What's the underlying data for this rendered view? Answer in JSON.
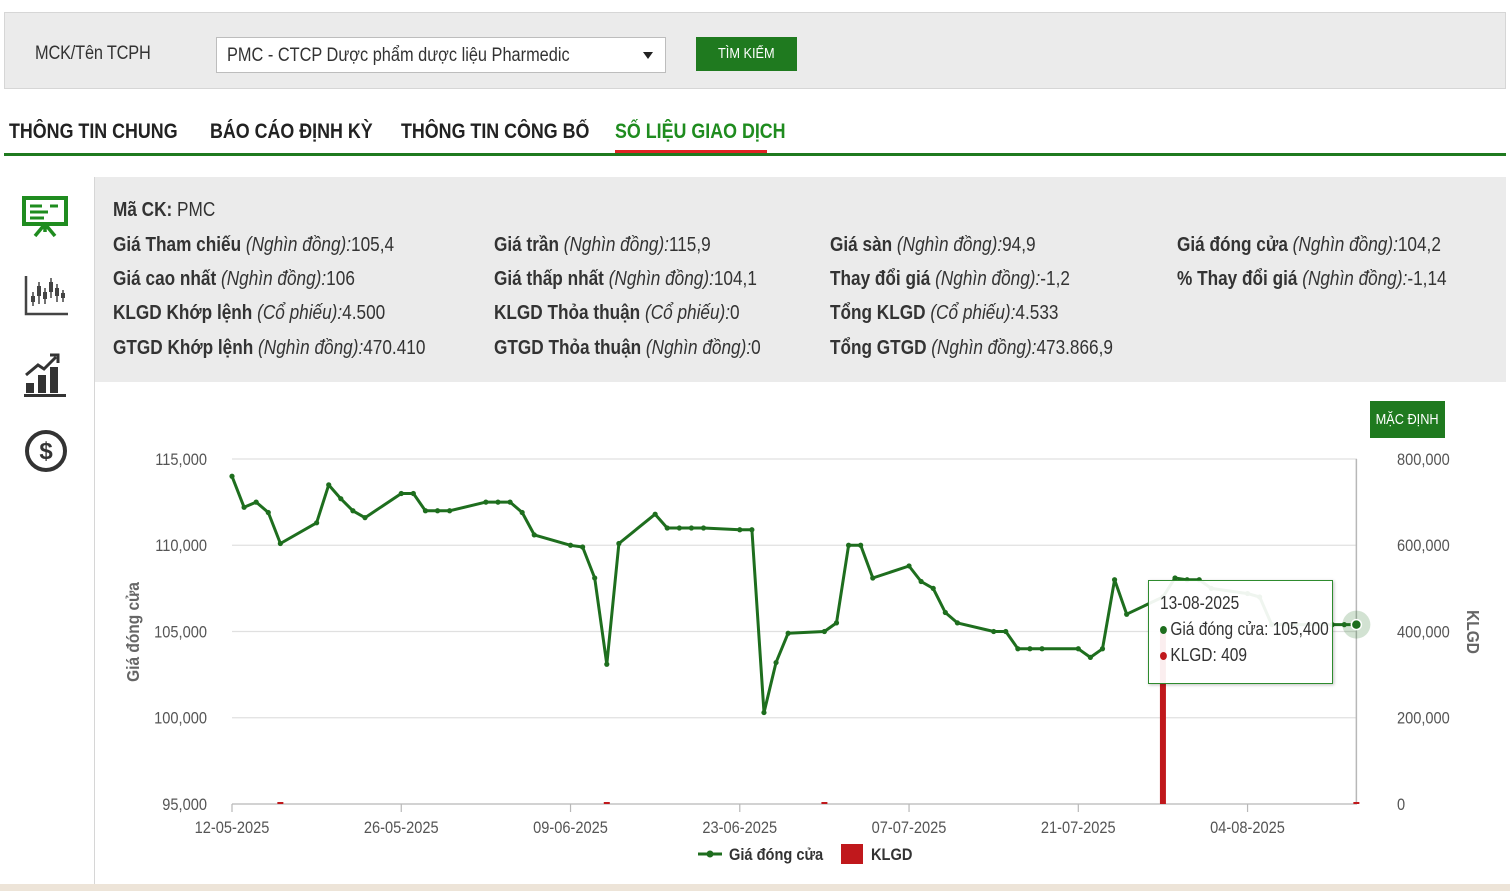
{
  "search": {
    "label": "MCK/Tên TCPH",
    "selected": "PMC - CTCP Dược phẩm dược liệu Pharmedic",
    "button": "TÌM KIẾM"
  },
  "tabs": [
    {
      "label": "THÔNG TIN CHUNG"
    },
    {
      "label": "BÁO CÁO ĐỊNH KỲ"
    },
    {
      "label": "THÔNG TIN CÔNG BỐ"
    },
    {
      "label": "SỐ LIỆU GIAO DỊCH",
      "active": true
    }
  ],
  "side_icons": [
    "presentation-board-icon",
    "candlestick-chart-icon",
    "bar-growth-chart-icon",
    "dollar-coin-icon"
  ],
  "info": {
    "ticker_label": "Mã CK:",
    "ticker": "PMC",
    "unit_price": "(Nghìn đồng):",
    "unit_shares": "(Cổ phiếu):",
    "ref_price": {
      "label": "Giá Tham chiếu",
      "value": "105,4"
    },
    "ceiling": {
      "label": "Giá trần",
      "value": "115,9"
    },
    "floor": {
      "label": "Giá sàn",
      "value": "94,9"
    },
    "close": {
      "label": "Giá đóng cửa",
      "value": "104,2"
    },
    "high": {
      "label": "Giá cao nhất",
      "value": "106"
    },
    "low": {
      "label": "Giá thấp nhất",
      "value": "104,1"
    },
    "change": {
      "label": "Thay đổi giá",
      "value": "-1,2"
    },
    "change_pct": {
      "label": "% Thay đổi giá",
      "value": "-1,14"
    },
    "vol_match": {
      "label": "KLGD Khớp lệnh",
      "value": "4.500"
    },
    "vol_deal": {
      "label": "KLGD Thỏa thuận",
      "value": "0"
    },
    "vol_total": {
      "label": "Tổng KLGD",
      "value": "4.533"
    },
    "val_match": {
      "label": "GTGD Khớp lệnh",
      "value": "470.410"
    },
    "val_deal": {
      "label": "GTGD Thỏa thuận",
      "value": "0"
    },
    "val_total": {
      "label": "Tổng GTGD",
      "value": "473.866,9"
    }
  },
  "chart": {
    "default_button": "MẶC ĐỊNH",
    "tooltip": {
      "date": "13-08-2025",
      "close_label": "Giá đóng cửa:",
      "close_value": "105,400",
      "vol_label": "KLGD:",
      "vol_value": "409"
    }
  },
  "chart_data": {
    "type": "line",
    "ylabel": "Giá đóng cửa",
    "y2label": "KLGD",
    "ylim": [
      95000,
      115000
    ],
    "y2lim": [
      0,
      800000
    ],
    "yticks": [
      "115,000",
      "110,000",
      "105,000",
      "100,000",
      "95,000"
    ],
    "y2ticks": [
      "800,000",
      "600,000",
      "400,000",
      "200,000",
      "0"
    ],
    "xticks": [
      "12-05-2025",
      "26-05-2025",
      "09-06-2025",
      "23-06-2025",
      "07-07-2025",
      "21-07-2025",
      "04-08-2025"
    ],
    "legend": [
      "Giá đóng cửa",
      "KLGD"
    ],
    "colors": {
      "price": "#1e6e1e",
      "volume": "#c0181c"
    },
    "series": [
      {
        "name": "Giá đóng cửa",
        "x": [
          "12-05-2025",
          "13-05-2025",
          "14-05-2025",
          "15-05-2025",
          "16-05-2025",
          "19-05-2025",
          "20-05-2025",
          "21-05-2025",
          "22-05-2025",
          "23-05-2025",
          "26-05-2025",
          "27-05-2025",
          "28-05-2025",
          "29-05-2025",
          "30-05-2025",
          "02-06-2025",
          "03-06-2025",
          "04-06-2025",
          "05-06-2025",
          "06-06-2025",
          "09-06-2025",
          "10-06-2025",
          "11-06-2025",
          "12-06-2025",
          "13-06-2025",
          "16-06-2025",
          "17-06-2025",
          "18-06-2025",
          "19-06-2025",
          "20-06-2025",
          "23-06-2025",
          "24-06-2025",
          "25-06-2025",
          "26-06-2025",
          "27-06-2025",
          "30-06-2025",
          "01-07-2025",
          "02-07-2025",
          "03-07-2025",
          "04-07-2025",
          "07-07-2025",
          "08-07-2025",
          "09-07-2025",
          "10-07-2025",
          "11-07-2025",
          "14-07-2025",
          "15-07-2025",
          "16-07-2025",
          "17-07-2025",
          "18-07-2025",
          "21-07-2025",
          "22-07-2025",
          "23-07-2025",
          "24-07-2025",
          "25-07-2025",
          "28-07-2025",
          "29-07-2025",
          "30-07-2025",
          "31-07-2025",
          "01-08-2025",
          "04-08-2025",
          "05-08-2025",
          "06-08-2025",
          "07-08-2025",
          "08-08-2025",
          "11-08-2025",
          "12-08-2025",
          "13-08-2025"
        ],
        "values": [
          114000,
          112200,
          112500,
          111900,
          110100,
          111300,
          113500,
          112700,
          112000,
          111600,
          113000,
          113000,
          112000,
          112000,
          112000,
          112500,
          112500,
          112500,
          111900,
          110600,
          110000,
          109900,
          108100,
          103100,
          110100,
          111800,
          111000,
          111000,
          111000,
          111000,
          110900,
          110900,
          100300,
          103200,
          104900,
          105000,
          105500,
          110000,
          110000,
          108100,
          108800,
          107900,
          107500,
          106100,
          105500,
          105000,
          105000,
          104000,
          104000,
          104000,
          104000,
          103500,
          104000,
          108000,
          106000,
          107000,
          108100,
          108000,
          108000,
          107500,
          107200,
          107000,
          105400,
          105400,
          105400,
          105400,
          105400,
          105400
        ]
      },
      {
        "name": "KLGD",
        "x": [
          "16-05-2025",
          "12-06-2025",
          "30-06-2025",
          "28-07-2025",
          "13-08-2025"
        ],
        "values": [
          1500,
          1200,
          1200,
          400000,
          409
        ]
      }
    ]
  }
}
